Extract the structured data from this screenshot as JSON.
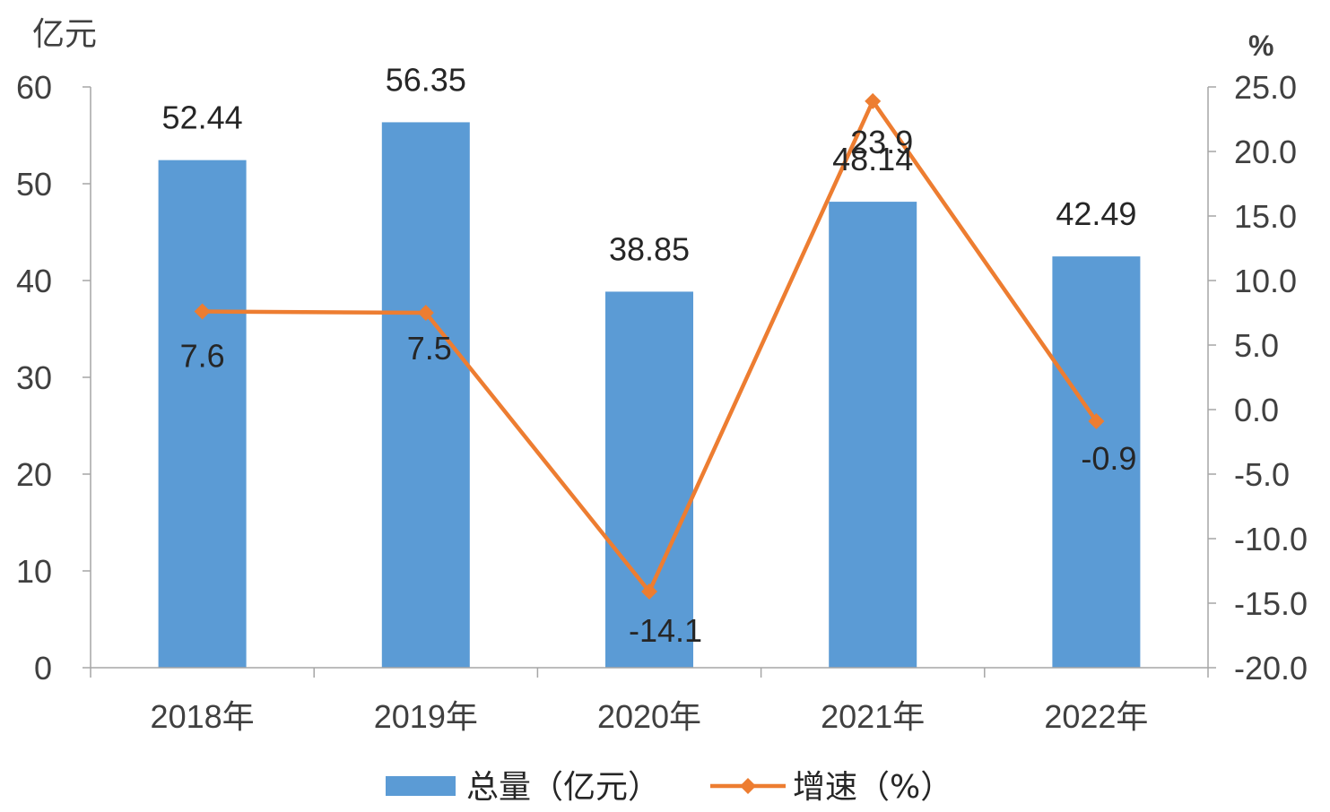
{
  "chart_data": {
    "type": "bar",
    "categories": [
      "2018年",
      "2019年",
      "2020年",
      "2021年",
      "2022年"
    ],
    "series": [
      {
        "name": "总量（亿元）",
        "type": "bar",
        "axis": "left",
        "color": "#5B9BD5",
        "values": [
          52.44,
          56.35,
          38.85,
          48.14,
          42.49
        ],
        "labels": [
          "52.44",
          "56.35",
          "38.85",
          "48.14",
          "42.49"
        ]
      },
      {
        "name": "增速（%）",
        "type": "line",
        "axis": "right",
        "color": "#ED7D31",
        "marker": "diamond",
        "values": [
          7.6,
          7.5,
          -14.1,
          23.9,
          -0.9
        ],
        "labels": [
          "7.6",
          "7.5",
          "-14.1",
          "23.9",
          "-0.9"
        ]
      }
    ],
    "y_left": {
      "unit": "亿元",
      "min": 0,
      "max": 60,
      "ticks": [
        0,
        10,
        20,
        30,
        40,
        50,
        60
      ],
      "tick_labels": [
        "0",
        "10",
        "20",
        "30",
        "40",
        "50",
        "60"
      ]
    },
    "y_right": {
      "unit": "%",
      "min": -20,
      "max": 25,
      "ticks": [
        -20,
        -15,
        -10,
        -5,
        0,
        5,
        10,
        15,
        20,
        25
      ],
      "tick_labels": [
        "-20.0",
        "-15.0",
        "-10.0",
        "-5.0",
        "0.0",
        "5.0",
        "10.0",
        "15.0",
        "20.0",
        "25.0"
      ]
    },
    "grid": false,
    "legend_position": "bottom-center",
    "axis_color": "#A6A6A6"
  }
}
